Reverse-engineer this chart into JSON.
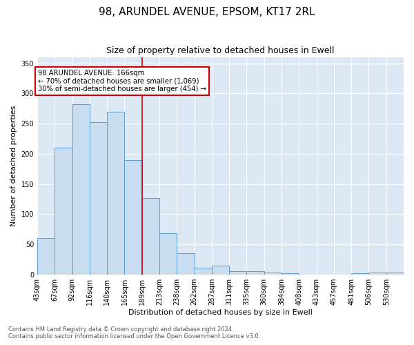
{
  "title": "98, ARUNDEL AVENUE, EPSOM, KT17 2RL",
  "subtitle": "Size of property relative to detached houses in Ewell",
  "xlabel": "Distribution of detached houses by size in Ewell",
  "ylabel": "Number of detached properties",
  "footer_line1": "Contains HM Land Registry data © Crown copyright and database right 2024.",
  "footer_line2": "Contains public sector information licensed under the Open Government Licence v3.0.",
  "annotation_line1": "98 ARUNDEL AVENUE: 166sqm",
  "annotation_line2": "← 70% of detached houses are smaller (1,069)",
  "annotation_line3": "30% of semi-detached houses are larger (454) →",
  "bar_edge_color": "#5b9bd5",
  "bar_face_color": "#c9ddf0",
  "marker_color": "#cc0000",
  "background_color": "#dde8f5",
  "categories": [
    "43sqm",
    "67sqm",
    "92sqm",
    "116sqm",
    "140sqm",
    "165sqm",
    "189sqm",
    "213sqm",
    "238sqm",
    "262sqm",
    "287sqm",
    "311sqm",
    "335sqm",
    "360sqm",
    "384sqm",
    "408sqm",
    "433sqm",
    "457sqm",
    "481sqm",
    "506sqm",
    "530sqm"
  ],
  "values": [
    60,
    210,
    282,
    252,
    270,
    190,
    127,
    68,
    35,
    11,
    14,
    5,
    5,
    3,
    2,
    0,
    0,
    0,
    2,
    3,
    3
  ],
  "ylim": [
    0,
    360
  ],
  "yticks": [
    0,
    50,
    100,
    150,
    200,
    250,
    300,
    350
  ],
  "n_bins": 21,
  "marker_bin_index": 5,
  "title_fontsize": 11,
  "subtitle_fontsize": 9,
  "axis_label_fontsize": 8,
  "tick_fontsize": 7,
  "footer_fontsize": 6
}
